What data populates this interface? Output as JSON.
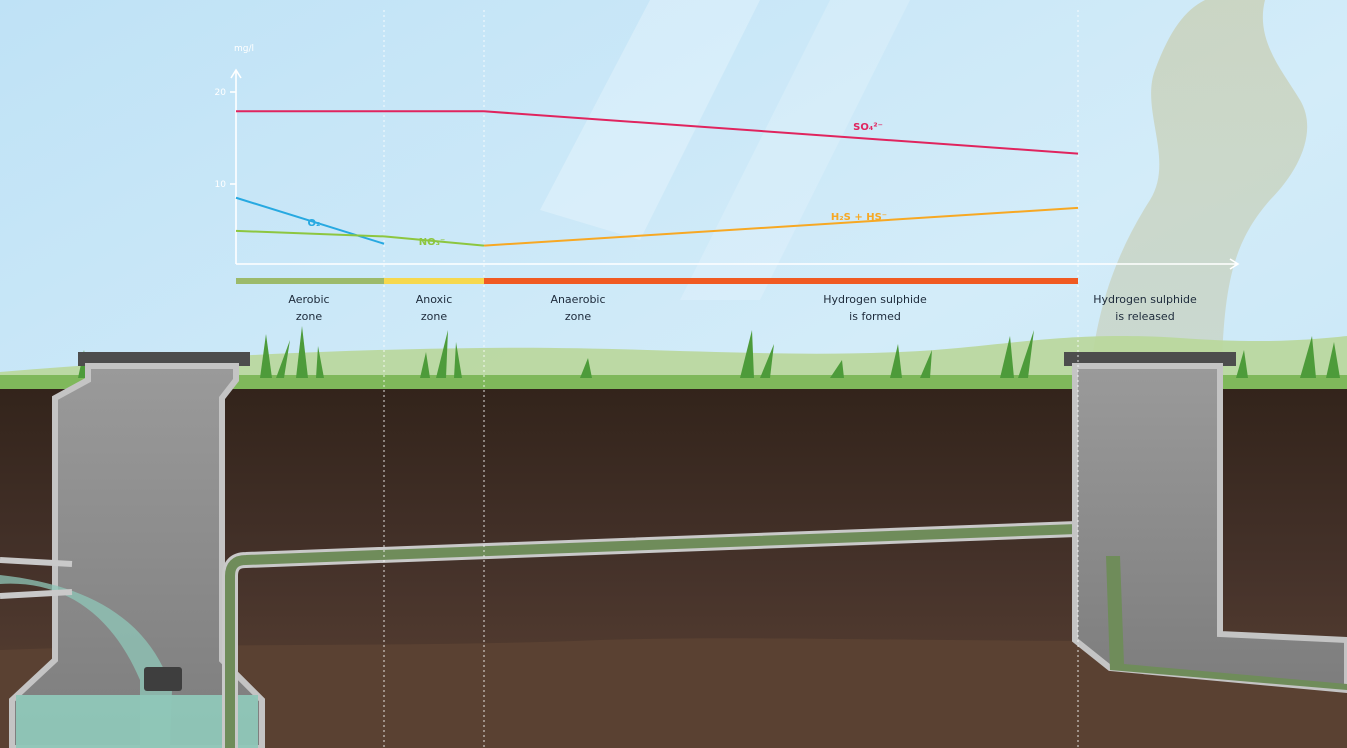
{
  "chart_data": {
    "type": "line",
    "ylabel": "mg/l",
    "yticks": [
      10,
      20
    ],
    "ylim": [
      0,
      23
    ],
    "x_positions_note_free": true,
    "series": [
      {
        "name": "O₂",
        "color": "#27a9e1",
        "points": [
          [
            0,
            7.2
          ],
          [
            1,
            2.2
          ]
        ]
      },
      {
        "name": "NO₃⁻",
        "color": "#8dc63f",
        "points": [
          [
            0,
            3.6
          ],
          [
            1,
            3.0
          ],
          [
            2,
            2.0
          ]
        ]
      },
      {
        "name": "SO₄²⁻",
        "color": "#e0245e",
        "points": [
          [
            0,
            16.6
          ],
          [
            2,
            16.6
          ],
          [
            4,
            12.0
          ]
        ]
      },
      {
        "name": "H₂S + HS⁻",
        "color": "#f7a823",
        "points": [
          [
            2,
            2.0
          ],
          [
            4,
            6.1
          ]
        ]
      }
    ],
    "zones": [
      {
        "label_line1": "Aerobic",
        "label_line2": "zone",
        "color": "#9cba6b"
      },
      {
        "label_line1": "Anoxic",
        "label_line2": "zone",
        "color": "#f6d84e"
      },
      {
        "label_line1": "Anaerobic",
        "label_line2": "zone",
        "color": "#f05a22"
      },
      {
        "label_line1": "Hydrogen sulphide",
        "label_line2": "is formed",
        "color": "#f05a22"
      },
      {
        "label_line1": "Hydrogen sulphide",
        "label_line2": "is released",
        "color": ""
      }
    ]
  },
  "colors": {
    "sky": "#c9e6f6",
    "soil_top": "#3b2a20",
    "soil_bottom": "#5b4131",
    "grass": "#8cc269",
    "concrete": "#a2a2a2",
    "lid": "#4d4d4d",
    "sewage": "#8fc7b8",
    "pipe_flow": "#6f8c5a"
  },
  "icons": [
    "left-manhole",
    "right-manhole",
    "force-main-pipe",
    "sewage-pool",
    "gas-plume",
    "pump"
  ]
}
